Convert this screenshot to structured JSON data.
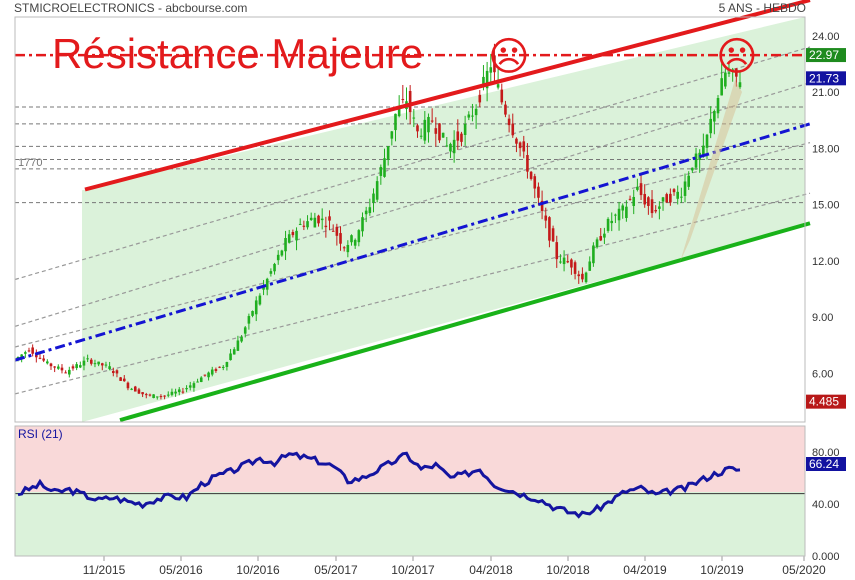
{
  "header": {
    "left": "STMICROELECTRONICS - abcbourse.com",
    "right": "5 ANS - HEBDO"
  },
  "annotation": {
    "title": "Résistance Majeure",
    "emoji": "☹",
    "level_label": "1770"
  },
  "colors": {
    "resistance": "#e31a1c",
    "support": "#19b219",
    "midline": "#1414d2",
    "bull_candle": "#1fae1f",
    "bear_candle": "#c41a1a",
    "channel_fill": "#dbf2da",
    "rsi_upper": "#f9d9d9",
    "rsi_lower": "#dbf2da",
    "rsi_line": "#1414a0",
    "badge_close": "#1212a0",
    "badge_res": "#1e8b1e",
    "badge_low": "#b81818"
  },
  "chart_data": [
    {
      "type": "candlestick",
      "title": "STMICROELECTRONICS",
      "subtitle": "5 ANS - HEBDO",
      "x_labels": [
        "11/2015",
        "05/2016",
        "10/2016",
        "05/2017",
        "10/2017",
        "04/2018",
        "10/2018",
        "04/2019",
        "10/2019",
        "05/2020"
      ],
      "y_ticks": [
        "24.00",
        "21.00",
        "18.00",
        "15.00",
        "12.00",
        "9.00",
        "6.00"
      ],
      "ylim": [
        3.4,
        25.0
      ],
      "grid": "horizontal-dashed",
      "price_path": [
        [
          0,
          6.7
        ],
        [
          4,
          7.3
        ],
        [
          9,
          6.5
        ],
        [
          14,
          6.1
        ],
        [
          20,
          6.7
        ],
        [
          26,
          6.3
        ],
        [
          31,
          5.3
        ],
        [
          36,
          4.8
        ],
        [
          41,
          4.8
        ],
        [
          46,
          5.1
        ],
        [
          52,
          5.9
        ],
        [
          57,
          6.4
        ],
        [
          62,
          8.0
        ],
        [
          66,
          9.8
        ],
        [
          70,
          11.4
        ],
        [
          74,
          13.0
        ],
        [
          78,
          13.9
        ],
        [
          82,
          14.3
        ],
        [
          86,
          14.0
        ],
        [
          90,
          12.8
        ],
        [
          93,
          13.3
        ],
        [
          97,
          15.0
        ],
        [
          101,
          17.5
        ],
        [
          104,
          19.8
        ],
        [
          107,
          20.6
        ],
        [
          110,
          18.8
        ],
        [
          114,
          19.5
        ],
        [
          118,
          18.1
        ],
        [
          122,
          18.7
        ],
        [
          126,
          20.3
        ],
        [
          130,
          22.5
        ],
        [
          133,
          20.5
        ],
        [
          136,
          19.0
        ],
        [
          140,
          17.0
        ],
        [
          144,
          14.5
        ],
        [
          148,
          12.2
        ],
        [
          152,
          11.8
        ],
        [
          155,
          11.0
        ],
        [
          158,
          12.6
        ],
        [
          162,
          14.0
        ],
        [
          166,
          14.7
        ],
        [
          170,
          15.8
        ],
        [
          174,
          14.6
        ],
        [
          178,
          15.3
        ],
        [
          182,
          15.7
        ],
        [
          185,
          17.2
        ],
        [
          188,
          17.8
        ],
        [
          191,
          20.2
        ],
        [
          194,
          22.0
        ],
        [
          197,
          21.73
        ]
      ],
      "horizontal_levels": [
        22.97,
        20.2,
        19.3,
        18.1,
        17.4,
        16.9,
        15.1
      ],
      "resistance_line": {
        "from": [
          85,
          15.8
        ],
        "to": [
          810,
          25.9
        ]
      },
      "support_line": {
        "from": [
          120,
          3.5
        ],
        "to": [
          810,
          14.0
        ]
      },
      "mid_line": {
        "from": [
          15,
          6.7
        ],
        "to": [
          810,
          19.3
        ]
      },
      "parallel_channels": [
        {
          "from": [
            15,
            4.9
          ],
          "to": [
            810,
            15.6
          ]
        },
        {
          "from": [
            15,
            7.4
          ],
          "to": [
            810,
            18.3
          ]
        },
        {
          "from": [
            15,
            8.5
          ],
          "to": [
            810,
            21.5
          ]
        },
        {
          "from": [
            15,
            11.0
          ],
          "to": [
            810,
            23.4
          ]
        }
      ],
      "badges": [
        {
          "label": "22.97",
          "value": 22.97,
          "color_key": "badge_res"
        },
        {
          "label": "21.73",
          "value": 21.73,
          "color_key": "badge_close"
        },
        {
          "label": "4.485",
          "value": 4.485,
          "color_key": "badge_low"
        }
      ]
    },
    {
      "type": "line",
      "title": "RSI (21)",
      "y_ticks": [
        "80.00",
        "40.00",
        "0.000"
      ],
      "ylim": [
        0,
        100
      ],
      "reference_level": 48,
      "last_value_label": "66.24",
      "last_value": 66.24,
      "rsi_path": [
        [
          0,
          48
        ],
        [
          6,
          55
        ],
        [
          10,
          49
        ],
        [
          14,
          51
        ],
        [
          18,
          47
        ],
        [
          22,
          43
        ],
        [
          26,
          45
        ],
        [
          30,
          42
        ],
        [
          34,
          40
        ],
        [
          38,
          44
        ],
        [
          42,
          46
        ],
        [
          46,
          45
        ],
        [
          50,
          55
        ],
        [
          54,
          61
        ],
        [
          58,
          65
        ],
        [
          62,
          70
        ],
        [
          66,
          75
        ],
        [
          70,
          72
        ],
        [
          74,
          78
        ],
        [
          78,
          76
        ],
        [
          82,
          73
        ],
        [
          86,
          69
        ],
        [
          90,
          58
        ],
        [
          94,
          60
        ],
        [
          98,
          66
        ],
        [
          102,
          72
        ],
        [
          106,
          78
        ],
        [
          110,
          67
        ],
        [
          114,
          70
        ],
        [
          118,
          60
        ],
        [
          122,
          63
        ],
        [
          126,
          67
        ],
        [
          130,
          55
        ],
        [
          134,
          51
        ],
        [
          138,
          47
        ],
        [
          142,
          44
        ],
        [
          146,
          38
        ],
        [
          150,
          34
        ],
        [
          154,
          32
        ],
        [
          158,
          36
        ],
        [
          162,
          43
        ],
        [
          166,
          50
        ],
        [
          170,
          52
        ],
        [
          174,
          47
        ],
        [
          178,
          50
        ],
        [
          182,
          52
        ],
        [
          186,
          58
        ],
        [
          190,
          63
        ],
        [
          194,
          67
        ],
        [
          197,
          66.24
        ]
      ]
    }
  ]
}
